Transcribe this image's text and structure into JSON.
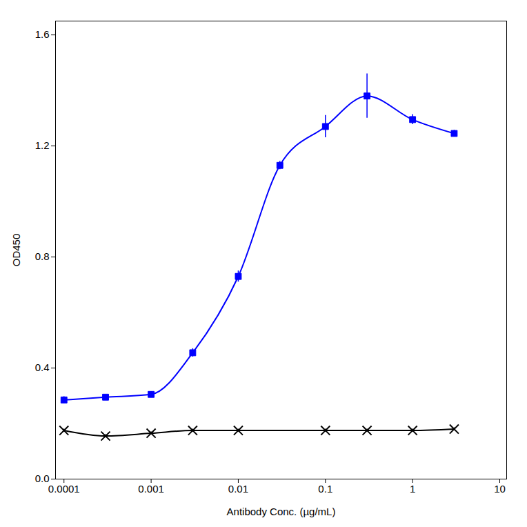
{
  "chart_data": {
    "type": "scatter",
    "xlabel": "Antibody Conc. (µg/mL)",
    "ylabel": "OD450",
    "log": "x",
    "xlim": [
      8e-05,
      12
    ],
    "xticks": [
      0.0001,
      0.001,
      0.01,
      0.1,
      1,
      10
    ],
    "ylim": [
      0.0,
      1.65
    ],
    "yticks": [
      {
        "value": 0.0,
        "label": "0.0"
      },
      0.4,
      0.8,
      1.2,
      1.6
    ],
    "grid": false,
    "series": [
      {
        "color": "#0000FF",
        "marker": "square",
        "line_style": "solid",
        "x": [
          0.0001,
          0.0003,
          0.001,
          0.003,
          0.01,
          0.03,
          0.1,
          0.3,
          1.0,
          3.0
        ],
        "values": [
          0.285,
          0.295,
          0.305,
          0.455,
          0.73,
          1.13,
          1.27,
          1.38,
          1.295,
          1.245
        ],
        "yerr": [
          0.012,
          0.008,
          0.01,
          0.015,
          0.02,
          0.015,
          0.04,
          0.08,
          0.018,
          0.012
        ]
      },
      {
        "color": "#000000",
        "marker": "x",
        "line_style": "solid",
        "x": [
          0.0001,
          0.0003,
          0.001,
          0.003,
          0.01,
          0.1,
          0.3,
          1.0,
          3.0
        ],
        "values": [
          0.175,
          0.155,
          0.165,
          0.175,
          0.175,
          0.175,
          0.175,
          0.175,
          0.18
        ],
        "yerr": [
          0.005,
          0.005,
          0.005,
          0.005,
          0.005,
          0.005,
          0.005,
          0.005,
          0.005
        ]
      }
    ]
  }
}
